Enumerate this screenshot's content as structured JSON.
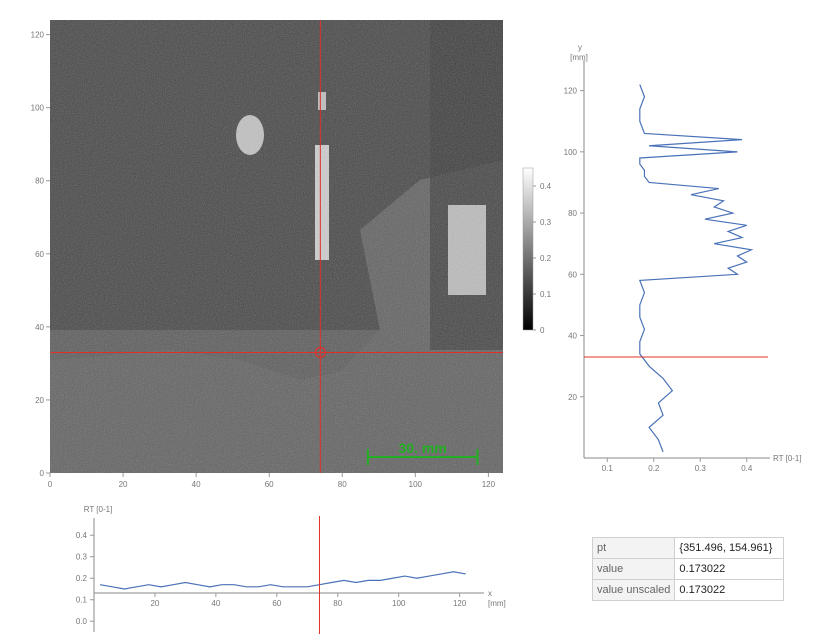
{
  "image_plot": {
    "x_ticks": [
      "0",
      "20",
      "40",
      "60",
      "80",
      "100",
      "120"
    ],
    "y_ticks": [
      "0",
      "20",
      "40",
      "60",
      "80",
      "100",
      "120"
    ],
    "crosshair": {
      "x": 74,
      "y": 33
    },
    "scale_bar": {
      "label": "30. mm",
      "start": 87,
      "end": 117,
      "color": "#22b022"
    },
    "xlim": [
      0,
      124
    ],
    "ylim": [
      0,
      124
    ]
  },
  "colorbar": {
    "ticks": [
      "0",
      "0.1",
      "0.2",
      "0.3",
      "0.4"
    ]
  },
  "right_profile": {
    "axis_label_y": "y",
    "axis_unit_y": "[mm]",
    "axis_label_x": "RT [0-1]",
    "x_ticks": [
      "0.1",
      "0.2",
      "0.3",
      "0.4"
    ],
    "y_ticks": [
      "20",
      "40",
      "60",
      "80",
      "100",
      "120"
    ],
    "xlim": [
      0.05,
      0.45
    ],
    "ylim": [
      0,
      130
    ],
    "crosshair_y": 33
  },
  "bottom_profile": {
    "axis_label_y": "RT [0-1]",
    "axis_label_x": "x",
    "axis_unit_x": "[mm]",
    "x_ticks": [
      "20",
      "40",
      "60",
      "80",
      "100",
      "120"
    ],
    "y_ticks": [
      "0.0",
      "0.1",
      "0.2",
      "0.3",
      "0.4"
    ],
    "xlim": [
      0,
      128
    ],
    "ylim": [
      -0.05,
      0.48
    ],
    "crosshair_x": 74
  },
  "info": {
    "rows": [
      {
        "key": "pt",
        "value": "{351.496, 154.961}"
      },
      {
        "key": "value",
        "value": "0.173022"
      },
      {
        "key": "value unscaled",
        "value": "0.173022"
      }
    ]
  },
  "chart_data": [
    {
      "type": "line",
      "axis": "vertical-profile",
      "xlabel": "RT [0-1]",
      "ylabel": "y [mm]",
      "xlim": [
        0.05,
        0.45
      ],
      "ylim": [
        0,
        130
      ],
      "y": [
        2,
        6,
        10,
        14,
        18,
        22,
        26,
        30,
        34,
        38,
        42,
        46,
        50,
        54,
        58,
        60,
        62,
        64,
        66,
        68,
        70,
        72,
        74,
        76,
        78,
        80,
        82,
        84,
        86,
        88,
        90,
        92,
        94,
        96,
        98,
        100,
        102,
        104,
        106,
        110,
        114,
        118,
        122
      ],
      "values": [
        0.22,
        0.21,
        0.19,
        0.22,
        0.21,
        0.24,
        0.22,
        0.19,
        0.17,
        0.17,
        0.18,
        0.17,
        0.17,
        0.18,
        0.17,
        0.38,
        0.36,
        0.4,
        0.38,
        0.41,
        0.33,
        0.39,
        0.36,
        0.4,
        0.31,
        0.37,
        0.33,
        0.35,
        0.28,
        0.34,
        0.19,
        0.18,
        0.18,
        0.17,
        0.17,
        0.38,
        0.19,
        0.39,
        0.18,
        0.17,
        0.17,
        0.18,
        0.17
      ]
    },
    {
      "type": "line",
      "axis": "horizontal-profile",
      "xlabel": "x [mm]",
      "ylabel": "RT [0-1]",
      "xlim": [
        0,
        128
      ],
      "ylim": [
        -0.05,
        0.48
      ],
      "x": [
        2,
        6,
        10,
        14,
        18,
        22,
        26,
        30,
        34,
        38,
        42,
        46,
        50,
        54,
        58,
        62,
        66,
        70,
        74,
        78,
        82,
        86,
        90,
        94,
        98,
        102,
        106,
        110,
        114,
        118,
        122
      ],
      "values": [
        0.17,
        0.16,
        0.15,
        0.16,
        0.17,
        0.16,
        0.17,
        0.18,
        0.17,
        0.16,
        0.17,
        0.17,
        0.16,
        0.16,
        0.17,
        0.16,
        0.16,
        0.16,
        0.17,
        0.18,
        0.19,
        0.18,
        0.19,
        0.19,
        0.2,
        0.21,
        0.2,
        0.21,
        0.22,
        0.23,
        0.22
      ]
    }
  ]
}
